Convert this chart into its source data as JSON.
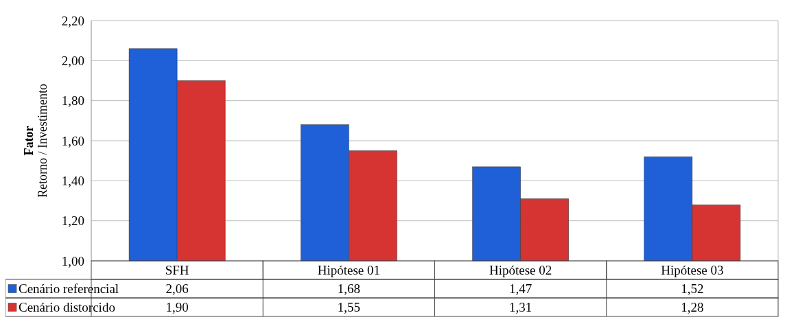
{
  "chart_data": {
    "type": "bar",
    "ylabel": "Fator\nRetorno / Investimento",
    "categories": [
      "SFH",
      "Hipótese 01",
      "Hipótese 02",
      "Hipótese 03"
    ],
    "series": [
      {
        "name": "Cenário referencial",
        "color": "#1f5fd8",
        "values": [
          2.06,
          1.68,
          1.47,
          1.52
        ],
        "value_labels": [
          "2,06",
          "1,68",
          "1,47",
          "1,52"
        ]
      },
      {
        "name": "Cenário distorcido",
        "color": "#d63333",
        "values": [
          1.9,
          1.55,
          1.31,
          1.28
        ],
        "value_labels": [
          "1,90",
          "1,55",
          "1,31",
          "1,28"
        ]
      }
    ],
    "ylim": [
      1.0,
      2.2
    ],
    "yticks": [
      {
        "value": 1.0,
        "label": "1,00"
      },
      {
        "value": 1.2,
        "label": "1,20"
      },
      {
        "value": 1.4,
        "label": "1,40"
      },
      {
        "value": 1.6,
        "label": "1,60"
      },
      {
        "value": 1.8,
        "label": "1,80"
      },
      {
        "value": 2.0,
        "label": "2,00"
      },
      {
        "value": 2.2,
        "label": "2,20"
      }
    ],
    "grid": "y",
    "legend": "bottom"
  }
}
